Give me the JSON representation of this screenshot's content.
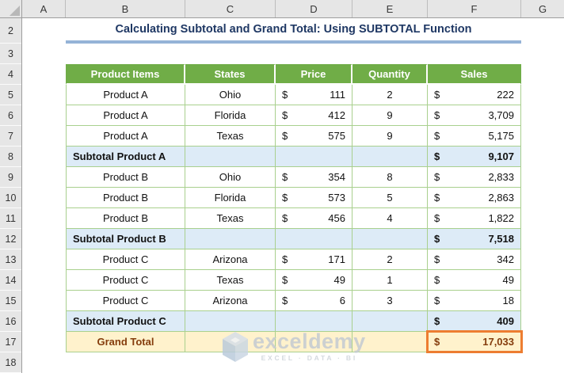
{
  "sheet": {
    "column_headers": [
      "A",
      "B",
      "C",
      "D",
      "E",
      "F",
      "G"
    ],
    "row_headers": [
      "2",
      "3",
      "4",
      "5",
      "6",
      "7",
      "8",
      "9",
      "10",
      "11",
      "12",
      "13",
      "14",
      "15",
      "16",
      "17",
      "18"
    ]
  },
  "title": {
    "text": "Calculating Subtotal and Grand Total: Using SUBTOTAL Function"
  },
  "table": {
    "currency": "$",
    "headers": [
      "Product Items",
      "States",
      "Price",
      "Quantity",
      "Sales"
    ],
    "rows": [
      {
        "type": "data",
        "product": "Product A",
        "state": "Ohio",
        "price": "111",
        "quantity": "2",
        "sales": "222"
      },
      {
        "type": "data",
        "product": "Product A",
        "state": "Florida",
        "price": "412",
        "quantity": "9",
        "sales": "3,709"
      },
      {
        "type": "data",
        "product": "Product A",
        "state": "Texas",
        "price": "575",
        "quantity": "9",
        "sales": "5,175"
      },
      {
        "type": "subtotal",
        "label": "Subtotal Product A",
        "sales": "9,107"
      },
      {
        "type": "data",
        "product": "Product B",
        "state": "Ohio",
        "price": "354",
        "quantity": "8",
        "sales": "2,833"
      },
      {
        "type": "data",
        "product": "Product B",
        "state": "Florida",
        "price": "573",
        "quantity": "5",
        "sales": "2,863"
      },
      {
        "type": "data",
        "product": "Product B",
        "state": "Texas",
        "price": "456",
        "quantity": "4",
        "sales": "1,822"
      },
      {
        "type": "subtotal",
        "label": "Subtotal Product B",
        "sales": "7,518"
      },
      {
        "type": "data",
        "product": "Product C",
        "state": "Arizona",
        "price": "171",
        "quantity": "2",
        "sales": "342"
      },
      {
        "type": "data",
        "product": "Product C",
        "state": "Texas",
        "price": "49",
        "quantity": "1",
        "sales": "49"
      },
      {
        "type": "data",
        "product": "Product C",
        "state": "Arizona",
        "price": "6",
        "quantity": "3",
        "sales": "18"
      },
      {
        "type": "subtotal",
        "label": "Subtotal Product C",
        "sales": "409"
      },
      {
        "type": "grandtotal",
        "label": "Grand Total",
        "sales": "17,033"
      }
    ]
  },
  "watermark": {
    "brand": "exceldemy",
    "tagline": "EXCEL · DATA · BI"
  },
  "colors": {
    "header_green": "#70AD47",
    "grid_border_green": "#A9D08E",
    "subtotal_blue": "#DDEBF7",
    "grandtotal_cream": "#FFF2CC",
    "grandtotal_brown": "#843C0C",
    "highlight_orange": "#ED7D31",
    "title_navy": "#1F3864",
    "title_underline_blue": "#95B3D7",
    "chrome_gray": "#E6E6E6"
  }
}
